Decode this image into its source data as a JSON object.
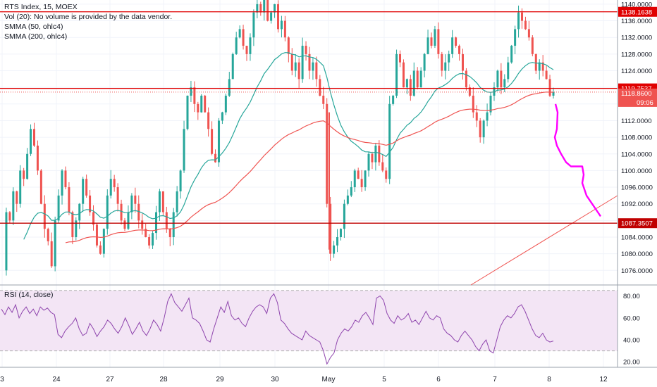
{
  "chart_data": {
    "type": "candlestick",
    "legend": {
      "title": "RTS Index, 15, MOEX",
      "volume": "Vol (20): No volume is provided by the data vendor.",
      "smma50": "SMMA (50, ohlc4)",
      "smma200": "SMMA (200, ohlc4)"
    },
    "x_ticks": [
      "3",
      "24",
      "27",
      "28",
      "29",
      "30",
      "May",
      "5",
      "6",
      "7",
      "8",
      "12"
    ],
    "y_range": [
      1072.5,
      1141.0
    ],
    "y_ticks": [
      "1140.0000",
      "1136.0000",
      "1132.0000",
      "1128.0000",
      "1124.0000",
      "1120.0000",
      "1116.0000",
      "1112.0000",
      "1108.0000",
      "1104.0000",
      "1100.0000",
      "1096.0000",
      "1092.0000",
      "1088.0000",
      "1084.0000",
      "1080.0000",
      "1076.0000"
    ],
    "y_tick_values": [
      1140,
      1136,
      1132,
      1128,
      1124,
      1120,
      1116,
      1112,
      1108,
      1104,
      1100,
      1096,
      1092,
      1088,
      1084,
      1080,
      1076
    ],
    "horizontal_levels": [
      {
        "value": 1138.1638,
        "label": "1138.1638",
        "color": "#e00000"
      },
      {
        "value": 1119.7537,
        "label": "1119.7537",
        "color": "#e00000"
      },
      {
        "value": 1087.3507,
        "label": "1087.3507",
        "color": "#c00000"
      }
    ],
    "price_label": {
      "value": 1118.86,
      "label": "1118.8600",
      "countdown": "09:06",
      "color": "#ef5350"
    },
    "up_color": "#26a69a",
    "down_color": "#ef5350",
    "smma50_color": "#26a69a",
    "smma200_color": "#ef5350",
    "projection_color": "#ff00ff",
    "rsi": {
      "label": "RSI (14, close)",
      "y_ticks": [
        "80.00",
        "60.00",
        "40.00",
        "20.00"
      ],
      "y_tick_values": [
        80,
        60,
        40,
        20
      ],
      "range": [
        15,
        90
      ],
      "band": [
        30,
        85
      ],
      "color": "#8e44ad",
      "band_color": "#f3e5f5"
    },
    "price_path": [
      1076,
      1090,
      1088,
      1095,
      1092,
      1100,
      1098,
      1104,
      1110,
      1106,
      1100,
      1092,
      1086,
      1083,
      1077,
      1088,
      1094,
      1100,
      1096,
      1090,
      1084,
      1088,
      1092,
      1098,
      1094,
      1090,
      1087,
      1082,
      1080,
      1086,
      1094,
      1098,
      1096,
      1092,
      1088,
      1086,
      1090,
      1094,
      1092,
      1088,
      1086,
      1084,
      1082,
      1085,
      1090,
      1095,
      1090,
      1086,
      1084,
      1090,
      1095,
      1100,
      1110,
      1118,
      1120,
      1116,
      1114,
      1118,
      1114,
      1110,
      1104,
      1102,
      1112,
      1114,
      1118,
      1122,
      1128,
      1132,
      1134,
      1130,
      1128,
      1132,
      1138,
      1140,
      1138,
      1142,
      1136,
      1138,
      1140,
      1134,
      1136,
      1132,
      1128,
      1124,
      1126,
      1122,
      1130,
      1128,
      1124,
      1126,
      1122,
      1118,
      1116,
      1092,
      1080,
      1082,
      1084,
      1086,
      1092,
      1094,
      1096,
      1100,
      1098,
      1096,
      1100,
      1104,
      1102,
      1106,
      1102,
      1100,
      1098,
      1116,
      1118,
      1128,
      1126,
      1120,
      1122,
      1118,
      1124,
      1120,
      1124,
      1128,
      1132,
      1130,
      1134,
      1128,
      1124,
      1126,
      1128,
      1132,
      1130,
      1128,
      1124,
      1120,
      1118,
      1114,
      1112,
      1108,
      1112,
      1114,
      1118,
      1120,
      1124,
      1120,
      1122,
      1126,
      1130,
      1134,
      1138,
      1136,
      1134,
      1132,
      1128,
      1124,
      1126,
      1124,
      1122,
      1118,
      1118.86
    ],
    "rsi_path": [
      68,
      63,
      70,
      65,
      72,
      60,
      66,
      70,
      64,
      68,
      62,
      70,
      67,
      69,
      65,
      63,
      45,
      42,
      48,
      52,
      55,
      60,
      50,
      44,
      46,
      55,
      50,
      43,
      48,
      52,
      58,
      55,
      50,
      46,
      52,
      60,
      53,
      45,
      50,
      56,
      48,
      44,
      50,
      58,
      54,
      48,
      60,
      75,
      82,
      74,
      70,
      66,
      72,
      78,
      60,
      58,
      55,
      48,
      40,
      38,
      50,
      60,
      70,
      65,
      75,
      62,
      58,
      60,
      55,
      52,
      60,
      66,
      70,
      72,
      70,
      64,
      78,
      82,
      74,
      58,
      55,
      50,
      46,
      44,
      42,
      40,
      48,
      44,
      42,
      40,
      38,
      30,
      18,
      24,
      28,
      40,
      46,
      50,
      48,
      52,
      58,
      56,
      62,
      65,
      60,
      54,
      78,
      80,
      76,
      64,
      58,
      55,
      62,
      58,
      60,
      64,
      56,
      58,
      54,
      60,
      66,
      60,
      58,
      62,
      60,
      50,
      46,
      44,
      40,
      38,
      44,
      48,
      44,
      40,
      34,
      30,
      36,
      40,
      30,
      28,
      40,
      52,
      58,
      62,
      60,
      64,
      70,
      72,
      66,
      58,
      50,
      44,
      42,
      46,
      40,
      38,
      39
    ]
  }
}
